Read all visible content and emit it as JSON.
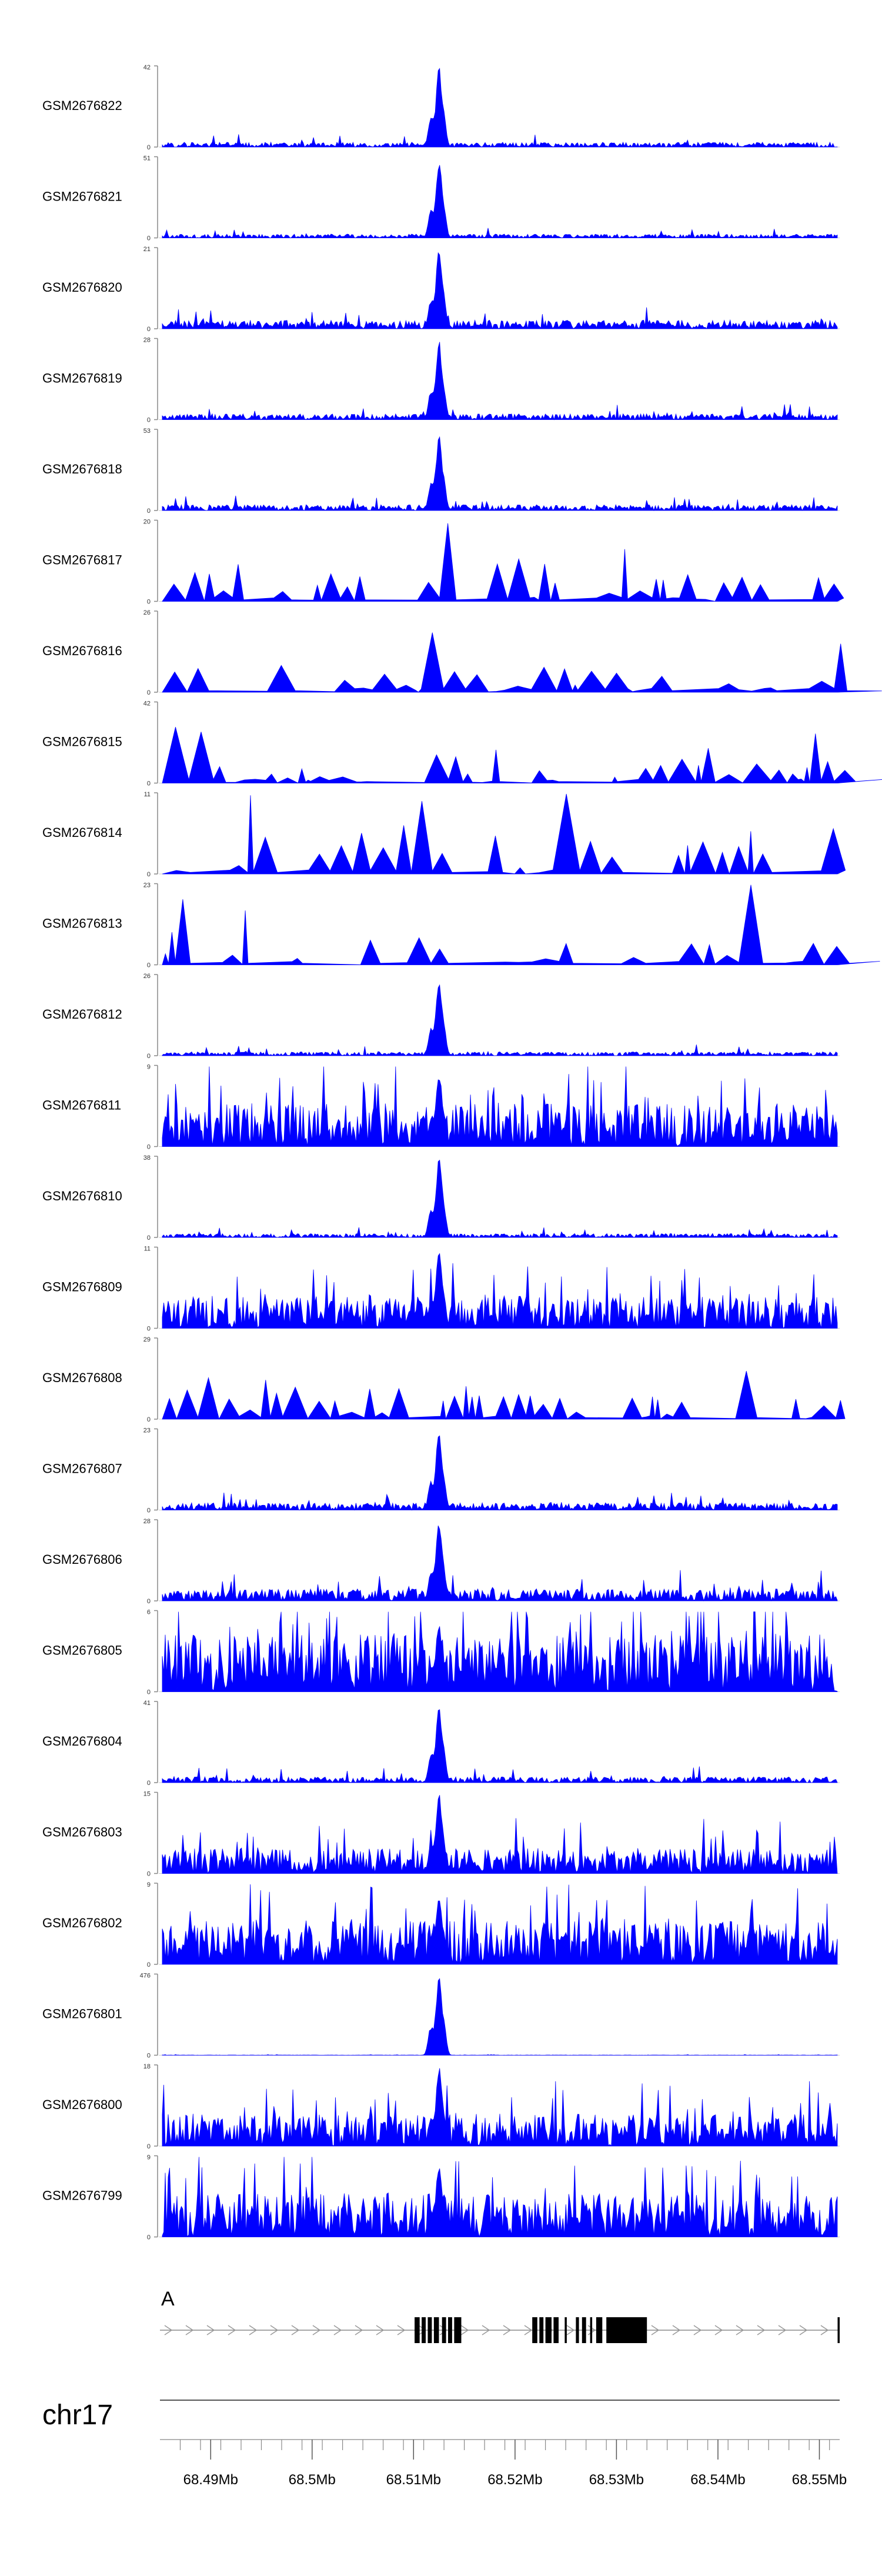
{
  "chart_data": {
    "type": "area",
    "chromosome": "chr17",
    "gene_label": "A",
    "xlim": [
      68.485,
      68.552
    ],
    "x_ticks": [
      {
        "value": 68.49,
        "label": "68.49Mb"
      },
      {
        "value": 68.5,
        "label": "68.5Mb"
      },
      {
        "value": 68.51,
        "label": "68.51Mb"
      },
      {
        "value": 68.52,
        "label": "68.52Mb"
      },
      {
        "value": 68.53,
        "label": "68.53Mb"
      },
      {
        "value": 68.54,
        "label": "68.54Mb"
      },
      {
        "value": 68.55,
        "label": "68.55Mb"
      }
    ],
    "fill_color": "#0000ff",
    "gene_color": "#000000",
    "peak_position": 68.5125,
    "tracks": [
      {
        "name": "GSM2676822",
        "ymax": 42,
        "style": "peak",
        "peak": 1.0,
        "background": 0.1
      },
      {
        "name": "GSM2676821",
        "ymax": 51,
        "style": "peak",
        "peak": 1.0,
        "background": 0.08
      },
      {
        "name": "GSM2676820",
        "ymax": 21,
        "style": "peak",
        "peak": 1.0,
        "background": 0.18
      },
      {
        "name": "GSM2676819",
        "ymax": 28,
        "style": "peak",
        "peak": 1.0,
        "background": 0.12
      },
      {
        "name": "GSM2676818",
        "ymax": 53,
        "style": "peak",
        "peak": 0.95,
        "background": 0.12
      },
      {
        "name": "GSM2676817",
        "ymax": 20,
        "style": "sparse",
        "peak": 0.3,
        "background": 0.55
      },
      {
        "name": "GSM2676816",
        "ymax": 26,
        "style": "sparse",
        "peak": 0.6,
        "background": 0.35
      },
      {
        "name": "GSM2676815",
        "ymax": 42,
        "style": "sparse",
        "peak": 0.15,
        "background": 0.35
      },
      {
        "name": "GSM2676814",
        "ymax": 11,
        "style": "sparse",
        "peak": 0.3,
        "background": 0.85
      },
      {
        "name": "GSM2676813",
        "ymax": 23,
        "style": "sparse",
        "peak": 0.2,
        "background": 0.6
      },
      {
        "name": "GSM2676812",
        "ymax": 26,
        "style": "peak",
        "peak": 0.95,
        "background": 0.08
      },
      {
        "name": "GSM2676811",
        "ymax": 9,
        "style": "dense",
        "peak": 0.95,
        "background": 0.6
      },
      {
        "name": "GSM2676810",
        "ymax": 38,
        "style": "peak",
        "peak": 1.0,
        "background": 0.08
      },
      {
        "name": "GSM2676809",
        "ymax": 11,
        "style": "dense",
        "peak": 1.0,
        "background": 0.45
      },
      {
        "name": "GSM2676808",
        "ymax": 29,
        "style": "sparse",
        "peak": 0.3,
        "background": 0.4
      },
      {
        "name": "GSM2676807",
        "ymax": 23,
        "style": "peak",
        "peak": 1.0,
        "background": 0.15
      },
      {
        "name": "GSM2676806",
        "ymax": 28,
        "style": "peak",
        "peak": 1.0,
        "background": 0.25
      },
      {
        "name": "GSM2676805",
        "ymax": 6,
        "style": "dense",
        "peak": 0.9,
        "background": 0.8
      },
      {
        "name": "GSM2676804",
        "ymax": 41,
        "style": "peak",
        "peak": 1.0,
        "background": 0.12
      },
      {
        "name": "GSM2676803",
        "ymax": 15,
        "style": "dense",
        "peak": 1.0,
        "background": 0.35
      },
      {
        "name": "GSM2676802",
        "ymax": 9,
        "style": "dense",
        "peak": 0.9,
        "background": 0.6
      },
      {
        "name": "GSM2676801",
        "ymax": 476,
        "style": "peak",
        "peak": 1.0,
        "background": 0.005
      },
      {
        "name": "GSM2676800",
        "ymax": 18,
        "style": "dense",
        "peak": 1.0,
        "background": 0.45
      },
      {
        "name": "GSM2676799",
        "ymax": 9,
        "style": "dense",
        "peak": 0.95,
        "background": 0.6
      }
    ],
    "exons": [
      [
        68.5101,
        68.5106
      ],
      [
        68.5108,
        68.5112
      ],
      [
        68.5114,
        68.5118
      ],
      [
        68.512,
        68.5125
      ],
      [
        68.5128,
        68.5132
      ],
      [
        68.5134,
        68.5138
      ],
      [
        68.514,
        68.5147
      ],
      [
        68.5217,
        68.5222
      ],
      [
        68.5224,
        68.5228
      ],
      [
        68.523,
        68.5236
      ],
      [
        68.5238,
        68.5243
      ],
      [
        68.5249,
        68.5251
      ],
      [
        68.526,
        68.5263
      ],
      [
        68.5266,
        68.527
      ],
      [
        68.5274,
        68.5276
      ],
      [
        68.528,
        68.5286
      ],
      [
        68.529,
        68.533
      ],
      [
        68.5518,
        68.552
      ]
    ],
    "gene_start": 68.485,
    "gene_end": 68.552
  }
}
